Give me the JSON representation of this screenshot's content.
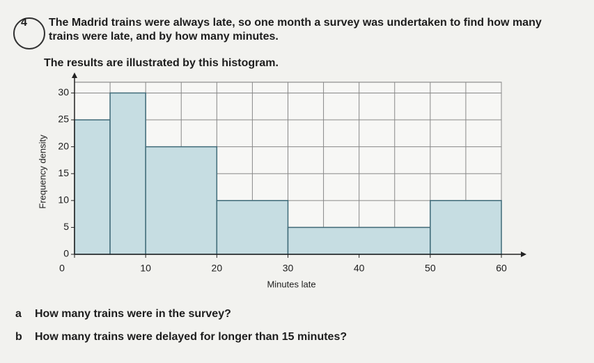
{
  "question": {
    "number": "4",
    "lines": [
      "The Madrid trains were always late, so one month a survey was undertaken to find how many",
      "trains were late, and by how many minutes."
    ],
    "intro": "The results are illustrated by this histogram."
  },
  "chart_data": {
    "type": "histogram",
    "bins": [
      0,
      5,
      10,
      20,
      30,
      50,
      60
    ],
    "values": [
      25,
      30,
      20,
      10,
      5,
      10
    ],
    "color": "#c6dde2",
    "xlabel": "Minutes late",
    "ylabel": "Frequency density",
    "xlim": [
      0,
      60
    ],
    "ylim": [
      0,
      32
    ],
    "xticks": [
      0,
      10,
      20,
      30,
      40,
      50,
      60
    ],
    "yticks": [
      0,
      5,
      10,
      15,
      20,
      25,
      30
    ],
    "grid": true
  },
  "parts": [
    {
      "letter": "a",
      "text": "How many trains were in the survey?"
    },
    {
      "letter": "b",
      "text": "How many trains were delayed for longer than 15 minutes?"
    }
  ]
}
